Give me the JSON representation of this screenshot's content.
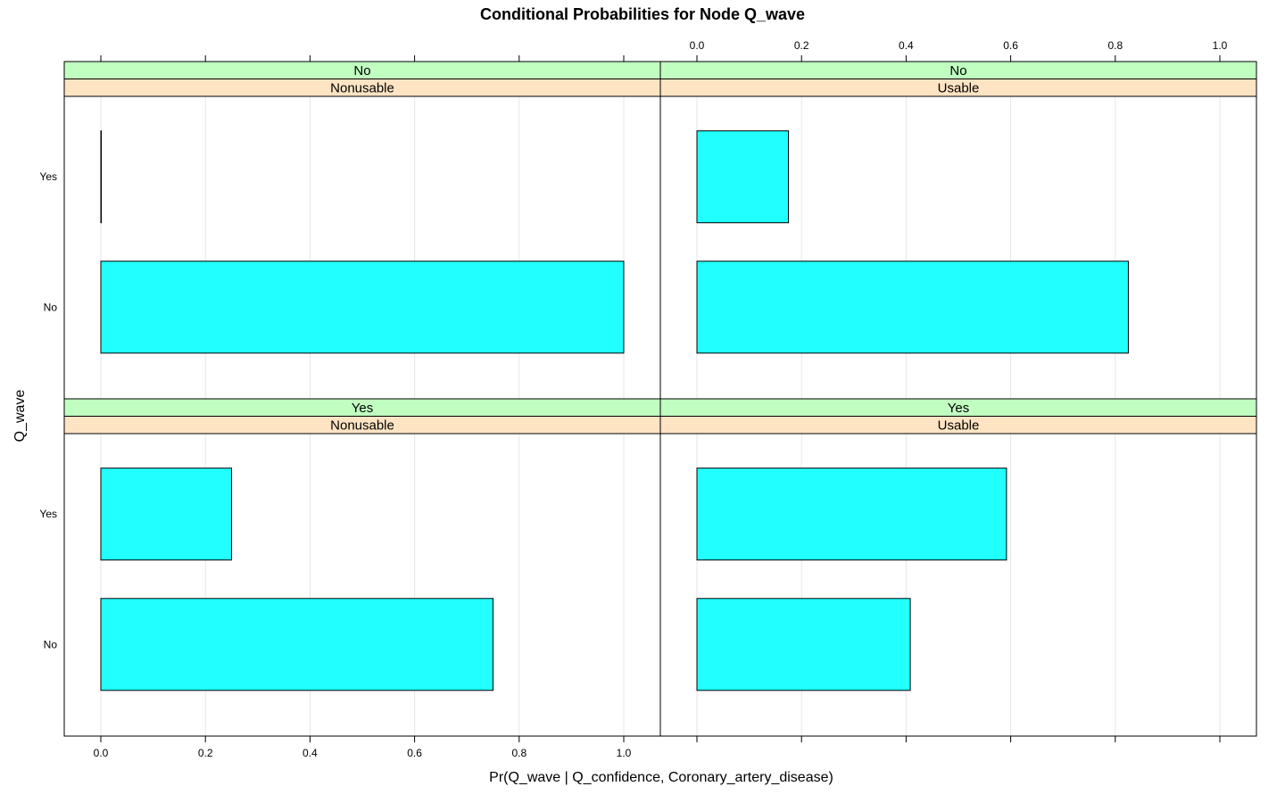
{
  "chart_data": {
    "type": "bar",
    "orientation": "horizontal",
    "title": "Conditional Probabilities for Node Q_wave",
    "xlabel": "Pr(Q_wave | Q_confidence, Coronary_artery_disease)",
    "ylabel": "Q_wave",
    "xlim": [
      0,
      1
    ],
    "x_ticks": [
      "0.0",
      "0.2",
      "0.4",
      "0.6",
      "0.8",
      "1.0"
    ],
    "categories": [
      "Yes",
      "No"
    ],
    "colors": {
      "bar_fill": "#21FFFF",
      "strip_top": "#C1FFC1",
      "strip_bottom": "#FFE4C4",
      "grid": "#E6E6E6"
    },
    "panels": [
      {
        "strip_top": "No",
        "strip_bottom": "Nonusable",
        "values": {
          "Yes": 0.0,
          "No": 1.0
        }
      },
      {
        "strip_top": "No",
        "strip_bottom": "Usable",
        "values": {
          "Yes": 0.175,
          "No": 0.825
        }
      },
      {
        "strip_top": "Yes",
        "strip_bottom": "Nonusable",
        "values": {
          "Yes": 0.25,
          "No": 0.75
        }
      },
      {
        "strip_top": "Yes",
        "strip_bottom": "Usable",
        "values": {
          "Yes": 0.592,
          "No": 0.408
        }
      }
    ]
  }
}
